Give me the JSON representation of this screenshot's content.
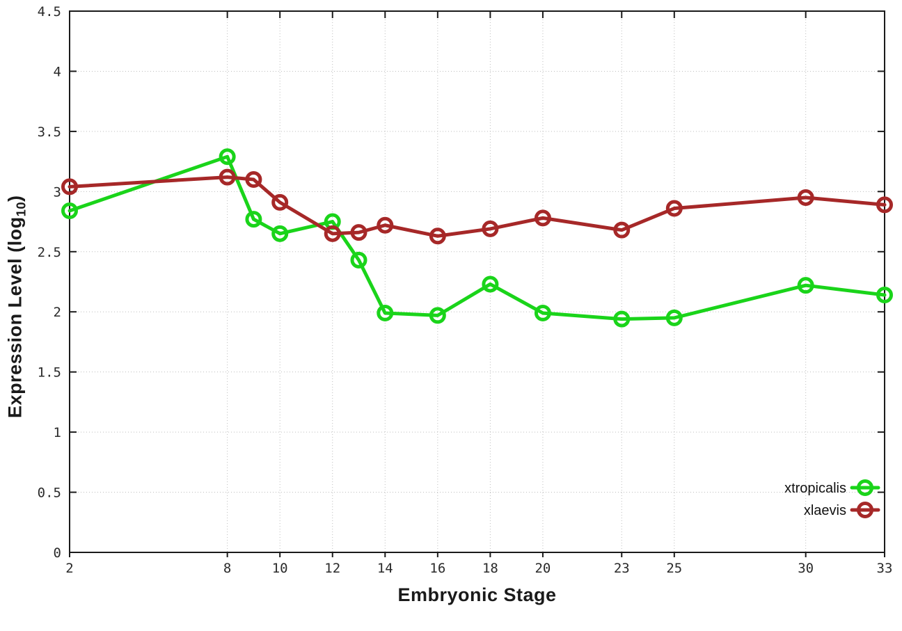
{
  "labels": {
    "xlabel": "Embryonic Stage",
    "ylabel_prefix": "Expression Level (log",
    "ylabel_sub": "10",
    "ylabel_suffix": ")"
  },
  "chart_data": {
    "type": "line",
    "title": "",
    "xlabel": "Embryonic Stage",
    "ylabel": "Expression Level (log10)",
    "xlim": [
      2,
      33
    ],
    "ylim": [
      0,
      4.5
    ],
    "x_ticks": [
      2,
      8,
      10,
      12,
      14,
      16,
      18,
      20,
      23,
      25,
      30,
      33
    ],
    "x_tick_labels": [
      "2",
      "8",
      "10",
      "12",
      "14",
      "16",
      "18",
      "20",
      "23",
      "25",
      "30",
      "33"
    ],
    "y_ticks": [
      0,
      0.5,
      1,
      1.5,
      2,
      2.5,
      3,
      3.5,
      4,
      4.5
    ],
    "y_tick_labels": [
      "0",
      "0.5",
      "1",
      "1.5",
      "2",
      "2.5",
      "3",
      "3.5",
      "4",
      "4.5"
    ],
    "grid": true,
    "legend_position": "bottom-right",
    "x": [
      2,
      8,
      9,
      10,
      12,
      13,
      14,
      16,
      18,
      20,
      23,
      25,
      30,
      33
    ],
    "series": [
      {
        "name": "xtropicalis",
        "color": "#1ad41a",
        "values": [
          2.84,
          3.29,
          2.77,
          2.65,
          2.75,
          2.43,
          1.99,
          1.97,
          2.23,
          1.99,
          1.94,
          1.95,
          2.22,
          2.14
        ]
      },
      {
        "name": "xlaevis",
        "color": "#a62828",
        "values": [
          3.04,
          3.12,
          3.1,
          2.91,
          2.65,
          2.66,
          2.72,
          2.63,
          2.69,
          2.78,
          2.68,
          2.86,
          2.95,
          2.89
        ]
      }
    ],
    "style": {
      "grid_color": "#bdbdbd",
      "axis_color": "#1a1a1a",
      "background": "#ffffff"
    }
  }
}
